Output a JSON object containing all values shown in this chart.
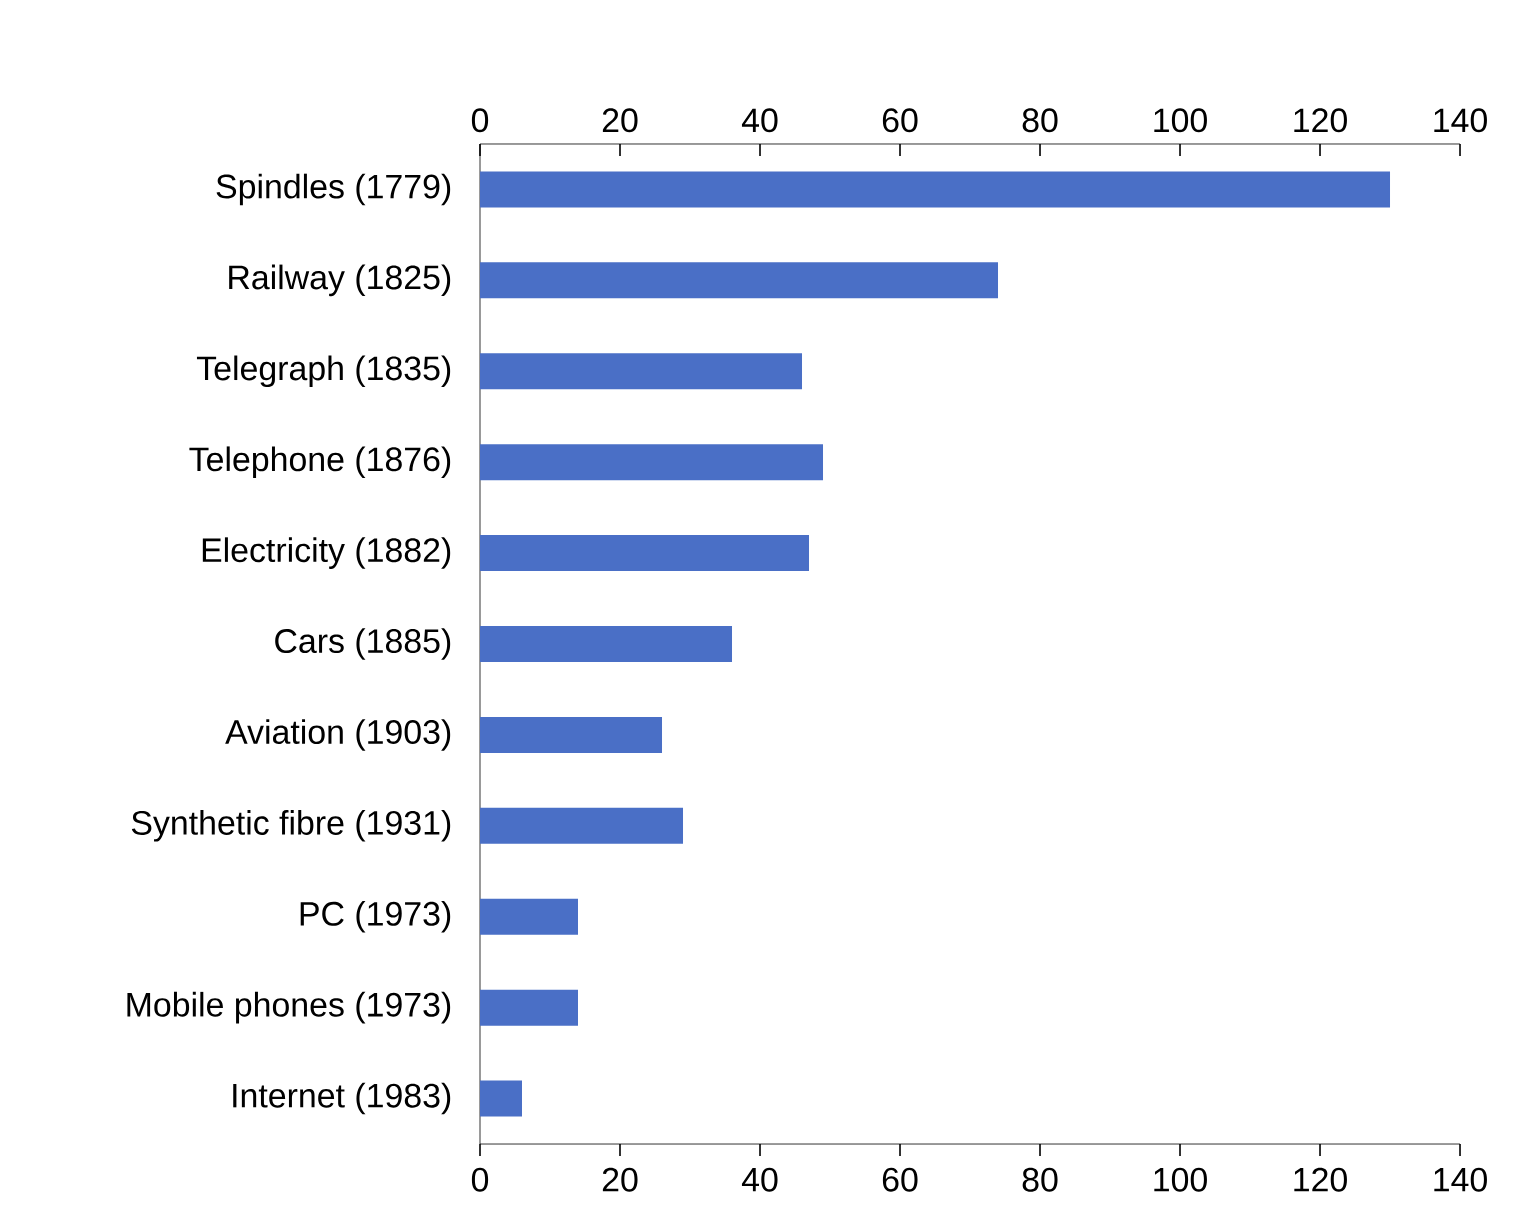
{
  "chart_data": {
    "type": "bar",
    "orientation": "horizontal",
    "categories": [
      "Spindles (1779)",
      "Railway (1825)",
      "Telegraph (1835)",
      "Telephone (1876)",
      "Electricity (1882)",
      "Cars (1885)",
      "Aviation (1903)",
      "Synthetic fibre (1931)",
      "PC (1973)",
      "Mobile phones (1973)",
      "Internet (1983)"
    ],
    "values": [
      130,
      74,
      46,
      49,
      47,
      36,
      26,
      29,
      14,
      14,
      6
    ],
    "color": "#4a6fc6",
    "xlim": [
      0,
      140
    ],
    "xticks": [
      0,
      20,
      40,
      60,
      80,
      100,
      120,
      140
    ],
    "x2lim": [
      0,
      140
    ],
    "x2ticks": [
      0,
      20,
      40,
      60,
      80,
      100,
      120,
      140
    ],
    "grid": false
  }
}
